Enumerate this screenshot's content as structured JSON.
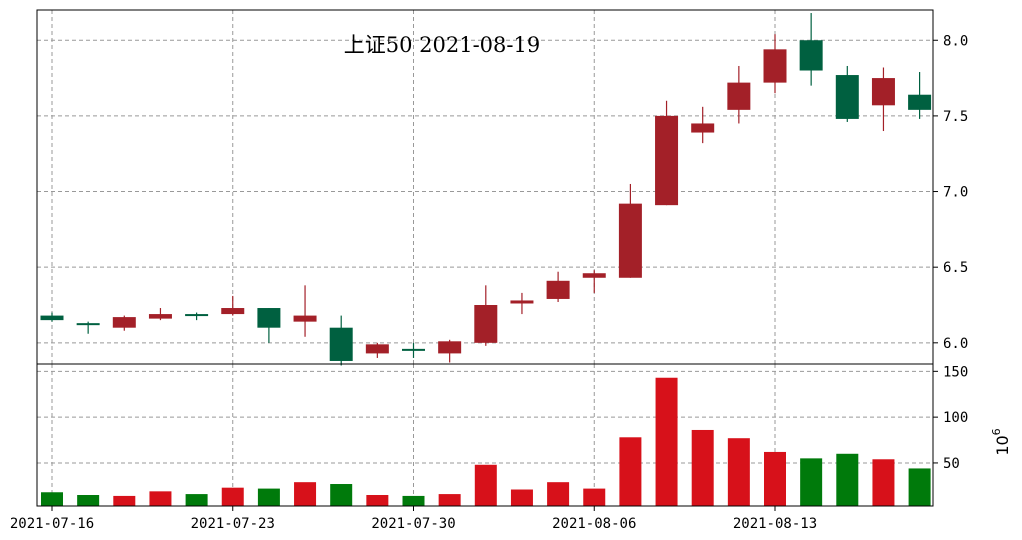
{
  "chart_data": {
    "type": "candlestick",
    "title": "上证50 2021-08-19",
    "colors": {
      "up": "#d7111a",
      "down": "#007a0b",
      "up_body": "#a32028",
      "down_body": "#006040",
      "grid": "#999999"
    },
    "x_ticks": [
      "2021-07-16",
      "2021-07-23",
      "2021-07-30",
      "2021-08-06",
      "2021-08-13"
    ],
    "price_axis": {
      "ylim": [
        5.86,
        8.2
      ],
      "ticks": [
        "6.0",
        "6.5",
        "7.0",
        "7.5",
        "8.0"
      ],
      "tick_values": [
        6.0,
        6.5,
        7.0,
        7.5,
        8.0
      ],
      "grid": true
    },
    "volume_axis": {
      "ylim": [
        3,
        158
      ],
      "ticks": [
        "50",
        "100",
        "150"
      ],
      "tick_values": [
        50,
        100,
        150
      ],
      "unit_base": "10",
      "unit_exp": "6",
      "grid": true
    },
    "candles": [
      {
        "date": "2021-07-16",
        "open": 6.18,
        "close": 6.15,
        "high": 6.2,
        "low": 6.14,
        "volume": 18
      },
      {
        "date": "2021-07-19",
        "open": 6.13,
        "close": 6.12,
        "high": 6.14,
        "low": 6.06,
        "volume": 15
      },
      {
        "date": "2021-07-20",
        "open": 6.1,
        "close": 6.17,
        "high": 6.18,
        "low": 6.08,
        "volume": 14
      },
      {
        "date": "2021-07-21",
        "open": 6.16,
        "close": 6.19,
        "high": 6.23,
        "low": 6.15,
        "volume": 19
      },
      {
        "date": "2021-07-22",
        "open": 6.19,
        "close": 6.18,
        "high": 6.2,
        "low": 6.15,
        "volume": 16
      },
      {
        "date": "2021-07-23",
        "open": 6.19,
        "close": 6.23,
        "high": 6.31,
        "low": 6.18,
        "volume": 23
      },
      {
        "date": "2021-07-26",
        "open": 6.23,
        "close": 6.1,
        "high": 6.23,
        "low": 6.0,
        "volume": 22
      },
      {
        "date": "2021-07-27",
        "open": 6.14,
        "close": 6.18,
        "high": 6.38,
        "low": 6.04,
        "volume": 29
      },
      {
        "date": "2021-07-28",
        "open": 6.1,
        "close": 5.88,
        "high": 6.18,
        "low": 5.85,
        "volume": 27
      },
      {
        "date": "2021-07-29",
        "open": 5.93,
        "close": 5.99,
        "high": 6.0,
        "low": 5.9,
        "volume": 15
      },
      {
        "date": "2021-07-30",
        "open": 5.96,
        "close": 5.95,
        "high": 6.0,
        "low": 5.9,
        "volume": 14
      },
      {
        "date": "2021-08-02",
        "open": 5.93,
        "close": 6.01,
        "high": 6.02,
        "low": 5.87,
        "volume": 16
      },
      {
        "date": "2021-08-03",
        "open": 6.0,
        "close": 6.25,
        "high": 6.38,
        "low": 5.98,
        "volume": 48
      },
      {
        "date": "2021-08-04",
        "open": 6.26,
        "close": 6.28,
        "high": 6.33,
        "low": 6.19,
        "volume": 21
      },
      {
        "date": "2021-08-05",
        "open": 6.29,
        "close": 6.41,
        "high": 6.47,
        "low": 6.27,
        "volume": 29
      },
      {
        "date": "2021-08-06",
        "open": 6.43,
        "close": 6.46,
        "high": 6.48,
        "low": 6.33,
        "volume": 22
      },
      {
        "date": "2021-08-09",
        "open": 6.43,
        "close": 6.92,
        "high": 7.05,
        "low": 6.43,
        "volume": 78
      },
      {
        "date": "2021-08-10",
        "open": 6.91,
        "close": 7.5,
        "high": 7.6,
        "low": 6.91,
        "volume": 143
      },
      {
        "date": "2021-08-11",
        "open": 7.39,
        "close": 7.45,
        "high": 7.56,
        "low": 7.32,
        "volume": 86
      },
      {
        "date": "2021-08-12",
        "open": 7.54,
        "close": 7.72,
        "high": 7.83,
        "low": 7.45,
        "volume": 77
      },
      {
        "date": "2021-08-13",
        "open": 7.72,
        "close": 7.94,
        "high": 8.04,
        "low": 7.65,
        "volume": 62
      },
      {
        "date": "2021-08-16",
        "open": 8.0,
        "close": 7.8,
        "high": 8.18,
        "low": 7.7,
        "volume": 55
      },
      {
        "date": "2021-08-17",
        "open": 7.77,
        "close": 7.48,
        "high": 7.83,
        "low": 7.46,
        "volume": 60
      },
      {
        "date": "2021-08-18",
        "open": 7.57,
        "close": 7.75,
        "high": 7.82,
        "low": 7.4,
        "volume": 54
      },
      {
        "date": "2021-08-19",
        "open": 7.64,
        "close": 7.54,
        "high": 7.79,
        "low": 7.48,
        "volume": 44
      }
    ]
  }
}
